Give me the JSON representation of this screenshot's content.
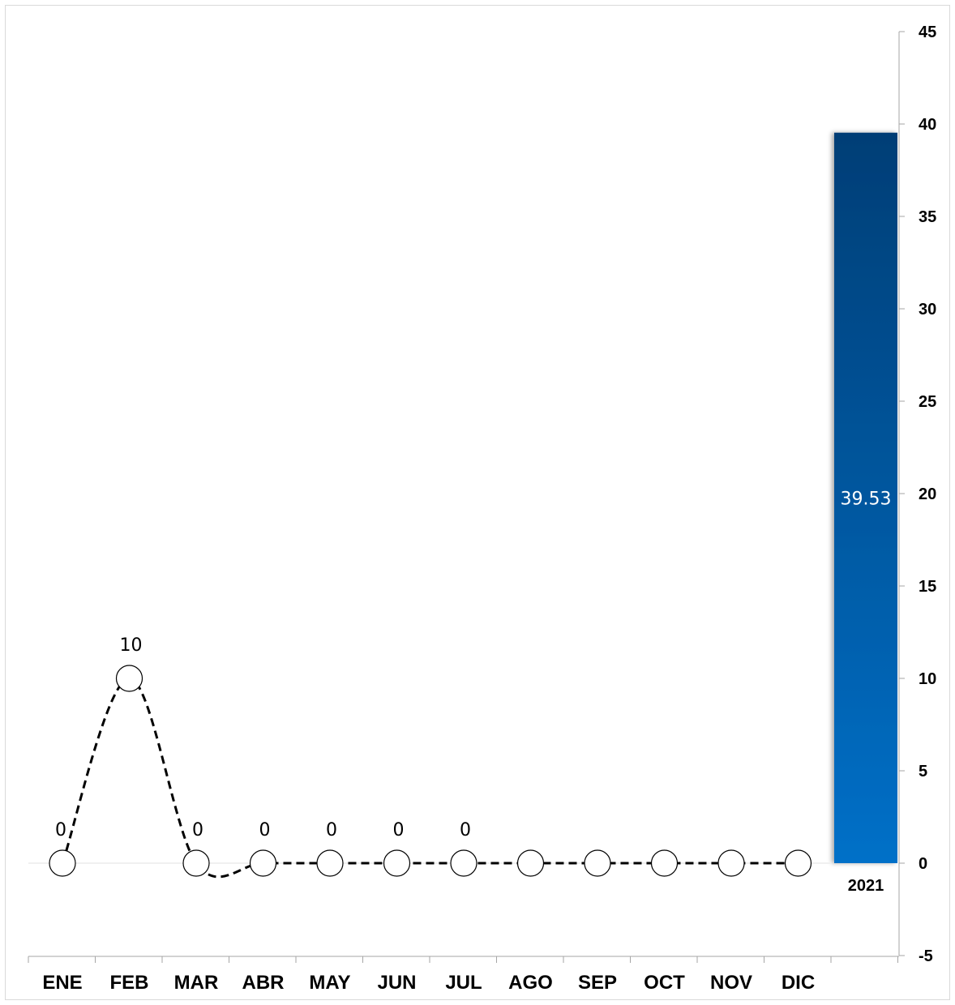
{
  "chart_data": {
    "type": "line",
    "categories": [
      "ENE",
      "FEB",
      "MAR",
      "ABR",
      "MAY",
      "JUN",
      "JUL",
      "AGO",
      "SEP",
      "OCT",
      "NOV",
      "DIC"
    ],
    "series": [
      {
        "values": [
          0,
          10,
          0,
          0,
          0,
          0,
          0,
          0,
          0,
          0,
          0,
          0
        ],
        "data_labels": [
          "0",
          "10",
          "0",
          "0",
          "0",
          "0",
          "0",
          "",
          "",
          "",
          "",
          ""
        ],
        "line_style": "dashed",
        "line_color": "#000000",
        "marker": "circle",
        "marker_fill": "#ffffff"
      }
    ],
    "bar": {
      "category": "2021",
      "value": 39.53,
      "label": "39.53",
      "color_top": "#003e76",
      "color_bottom": "#0070c8"
    },
    "y_axis": {
      "position": "right",
      "min": -5,
      "max": 45,
      "step": 5,
      "ticks": [
        "-5",
        "0",
        "5",
        "10",
        "15",
        "20",
        "25",
        "30",
        "35",
        "40",
        "45"
      ]
    },
    "title": "",
    "xlabel": "",
    "ylabel": "",
    "grid": false,
    "legend": "none"
  }
}
